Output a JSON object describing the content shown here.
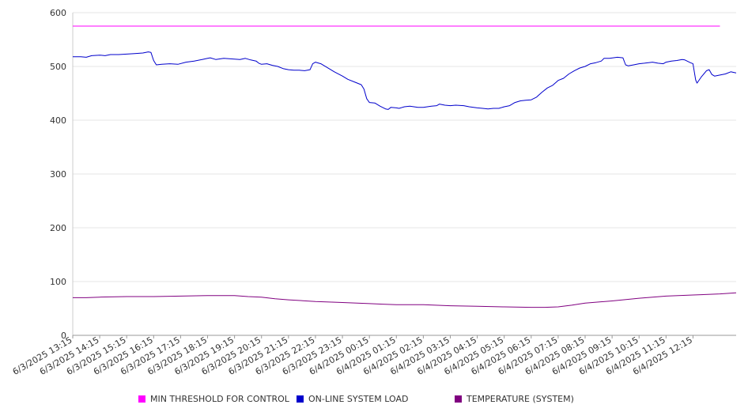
{
  "chart_data": {
    "type": "line",
    "title": "",
    "xlabel": "",
    "ylabel": "",
    "ylim": [
      0,
      600
    ],
    "y_ticks": [
      "0",
      "100",
      "200",
      "300",
      "400",
      "500",
      "600"
    ],
    "x_tick_labels": [
      "6/3/2025 13:15",
      "6/3/2025 14:15",
      "6/3/2025 15:15",
      "6/3/2025 16:15",
      "6/3/2025 17:15",
      "6/3/2025 18:15",
      "6/3/2025 19:15",
      "6/3/2025 20:15",
      "6/3/2025 21:15",
      "6/3/2025 22:15",
      "6/3/2025 23:15",
      "6/4/2025 00:15",
      "6/4/2025 01:15",
      "6/4/2025 02:15",
      "6/4/2025 03:15",
      "6/4/2025 04:15",
      "6/4/2025 05:15",
      "6/4/2025 06:15",
      "6/4/2025 07:15",
      "6/4/2025 08:15",
      "6/4/2025 09:15",
      "6/4/2025 10:15",
      "6/4/2025 11:15",
      "6/4/2025 12:15"
    ],
    "x_range_hours": [
      0,
      24
    ],
    "grid": "horizontal",
    "legend_position": "bottom",
    "series": [
      {
        "name": "MIN THRESHOLD FOR CONTROL",
        "color": "#ff00ff",
        "points": [
          [
            0,
            575
          ],
          [
            24,
            575
          ]
        ]
      },
      {
        "name": "ON-LINE SYSTEM LOAD",
        "color": "#0000cc",
        "points": [
          [
            0,
            518
          ],
          [
            0.3,
            518
          ],
          [
            0.5,
            517
          ],
          [
            0.7,
            520
          ],
          [
            1.0,
            521
          ],
          [
            1.2,
            520
          ],
          [
            1.4,
            522
          ],
          [
            1.7,
            522
          ],
          [
            2.0,
            523
          ],
          [
            2.3,
            524
          ],
          [
            2.6,
            525
          ],
          [
            2.8,
            527
          ],
          [
            2.9,
            526
          ],
          [
            3.0,
            511
          ],
          [
            3.1,
            503
          ],
          [
            3.3,
            504
          ],
          [
            3.6,
            505
          ],
          [
            3.9,
            504
          ],
          [
            4.2,
            508
          ],
          [
            4.5,
            510
          ],
          [
            4.8,
            513
          ],
          [
            5.0,
            515
          ],
          [
            5.1,
            516
          ],
          [
            5.3,
            513
          ],
          [
            5.6,
            515
          ],
          [
            5.9,
            514
          ],
          [
            6.2,
            513
          ],
          [
            6.4,
            515
          ],
          [
            6.6,
            512
          ],
          [
            6.8,
            510
          ],
          [
            6.9,
            506
          ],
          [
            7.0,
            504
          ],
          [
            7.2,
            505
          ],
          [
            7.4,
            502
          ],
          [
            7.6,
            500
          ],
          [
            7.8,
            496
          ],
          [
            8.0,
            494
          ],
          [
            8.2,
            493
          ],
          [
            8.4,
            493
          ],
          [
            8.6,
            492
          ],
          [
            8.8,
            494
          ],
          [
            8.9,
            505
          ],
          [
            9.0,
            508
          ],
          [
            9.2,
            505
          ],
          [
            9.5,
            496
          ],
          [
            9.7,
            490
          ],
          [
            10.0,
            482
          ],
          [
            10.2,
            476
          ],
          [
            10.5,
            470
          ],
          [
            10.7,
            466
          ],
          [
            10.8,
            458
          ],
          [
            10.9,
            440
          ],
          [
            11.0,
            433
          ],
          [
            11.2,
            432
          ],
          [
            11.4,
            426
          ],
          [
            11.6,
            421
          ],
          [
            11.7,
            420
          ],
          [
            11.8,
            424
          ],
          [
            12.0,
            423
          ],
          [
            12.1,
            422
          ],
          [
            12.3,
            425
          ],
          [
            12.5,
            426
          ],
          [
            12.8,
            424
          ],
          [
            13.0,
            424
          ],
          [
            13.3,
            426
          ],
          [
            13.5,
            427
          ],
          [
            13.6,
            430
          ],
          [
            13.8,
            428
          ],
          [
            14.0,
            427
          ],
          [
            14.2,
            428
          ],
          [
            14.5,
            427
          ],
          [
            14.7,
            425
          ],
          [
            15.0,
            423
          ],
          [
            15.2,
            422
          ],
          [
            15.4,
            421
          ],
          [
            15.6,
            422
          ],
          [
            15.8,
            422
          ],
          [
            16.0,
            425
          ],
          [
            16.2,
            427
          ],
          [
            16.4,
            433
          ],
          [
            16.6,
            436
          ],
          [
            16.8,
            437
          ],
          [
            17.0,
            438
          ],
          [
            17.2,
            443
          ],
          [
            17.4,
            452
          ],
          [
            17.6,
            460
          ],
          [
            17.8,
            465
          ],
          [
            18.0,
            474
          ],
          [
            18.2,
            478
          ],
          [
            18.4,
            486
          ],
          [
            18.6,
            492
          ],
          [
            18.8,
            497
          ],
          [
            19.0,
            500
          ],
          [
            19.2,
            505
          ],
          [
            19.4,
            507
          ],
          [
            19.6,
            510
          ],
          [
            19.7,
            515
          ],
          [
            19.9,
            515
          ],
          [
            20.2,
            517
          ],
          [
            20.4,
            516
          ],
          [
            20.5,
            503
          ],
          [
            20.6,
            501
          ],
          [
            20.8,
            503
          ],
          [
            21.0,
            505
          ],
          [
            21.2,
            506
          ],
          [
            21.5,
            508
          ],
          [
            21.7,
            506
          ],
          [
            21.9,
            505
          ],
          [
            22.0,
            508
          ],
          [
            22.2,
            510
          ],
          [
            22.4,
            511
          ],
          [
            22.6,
            513
          ],
          [
            22.7,
            512
          ],
          [
            22.9,
            507
          ],
          [
            23.0,
            505
          ],
          [
            23.1,
            475
          ],
          [
            23.15,
            469
          ],
          [
            23.3,
            480
          ],
          [
            23.5,
            492
          ],
          [
            23.6,
            494
          ],
          [
            23.7,
            485
          ],
          [
            23.8,
            482
          ],
          [
            24.0,
            484
          ],
          [
            24.2,
            486
          ],
          [
            24.4,
            490
          ],
          [
            24.6,
            488
          ]
        ]
      },
      {
        "name": "TEMPERATURE (SYSTEM)",
        "color": "#800080",
        "points": [
          [
            0,
            70
          ],
          [
            0.5,
            70
          ],
          [
            1.0,
            71
          ],
          [
            2.0,
            72
          ],
          [
            3.0,
            72
          ],
          [
            4.0,
            73
          ],
          [
            5.0,
            74
          ],
          [
            6.0,
            74
          ],
          [
            6.5,
            72
          ],
          [
            7.0,
            71
          ],
          [
            7.5,
            68
          ],
          [
            8.0,
            66
          ],
          [
            9.0,
            63
          ],
          [
            10.0,
            61
          ],
          [
            11.0,
            59
          ],
          [
            11.5,
            58
          ],
          [
            12.0,
            57
          ],
          [
            13.0,
            57
          ],
          [
            14.0,
            55
          ],
          [
            15.0,
            54
          ],
          [
            16.0,
            53
          ],
          [
            17.0,
            52
          ],
          [
            17.5,
            52
          ],
          [
            18.0,
            53
          ],
          [
            18.5,
            56
          ],
          [
            19.0,
            60
          ],
          [
            20.0,
            64
          ],
          [
            21.0,
            69
          ],
          [
            22.0,
            73
          ],
          [
            23.0,
            75
          ],
          [
            24.0,
            77
          ],
          [
            24.6,
            79
          ]
        ]
      }
    ]
  }
}
